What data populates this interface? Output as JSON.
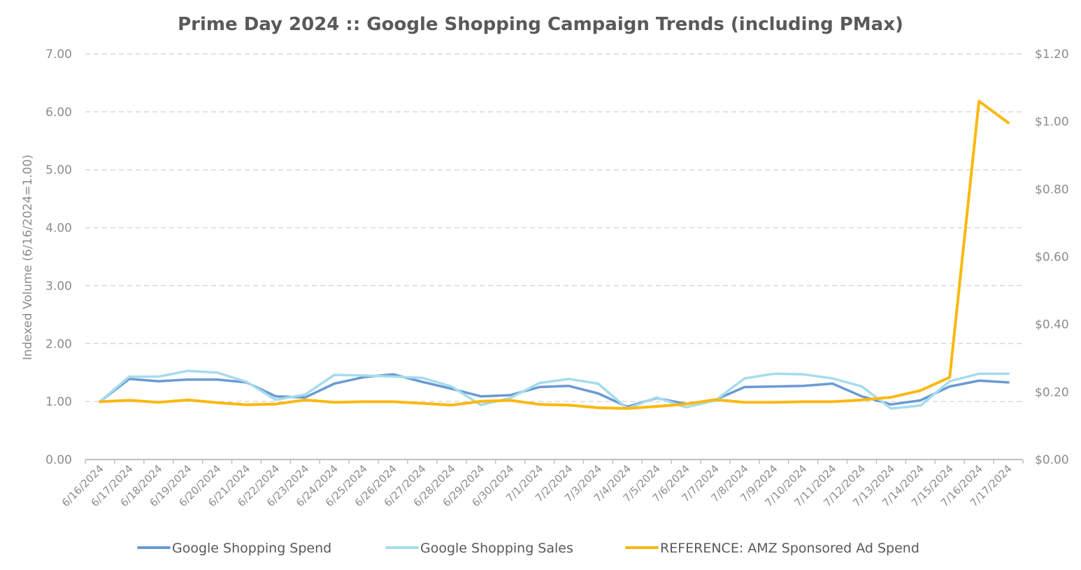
{
  "chart_data": {
    "type": "line",
    "title": "Prime Day 2024 :: Google Shopping Campaign Trends (including PMax)",
    "ylabel": "Indexed Volume (6/16/2024=1.00)",
    "y2label": "",
    "xlabel": "",
    "ylim": [
      0,
      7
    ],
    "y2lim": [
      0,
      1.2
    ],
    "yticks": [
      "0.00",
      "1.00",
      "2.00",
      "3.00",
      "4.00",
      "5.00",
      "6.00",
      "7.00"
    ],
    "y2ticks": [
      "$0.00",
      "$0.20",
      "$0.40",
      "$0.60",
      "$0.80",
      "$1.00",
      "$1.20"
    ],
    "grid": "horizontal-dashed",
    "legend_position": "bottom",
    "categories": [
      "6/16/2024",
      "6/17/2024",
      "6/18/2024",
      "6/19/2024",
      "6/20/2024",
      "6/21/2024",
      "6/22/2024",
      "6/23/2024",
      "6/24/2024",
      "6/25/2024",
      "6/26/2024",
      "6/27/2024",
      "6/28/2024",
      "6/29/2024",
      "6/30/2024",
      "7/1/2024",
      "7/2/2024",
      "7/3/2024",
      "7/4/2024",
      "7/5/2024",
      "7/6/2024",
      "7/7/2024",
      "7/8/2024",
      "7/9/2024",
      "7/10/2024",
      "7/11/2024",
      "7/12/2024",
      "7/13/2024",
      "7/14/2024",
      "7/15/2024",
      "7/16/2024",
      "7/17/2024"
    ],
    "series": [
      {
        "name": "Google Shopping Spend",
        "axis": "left",
        "color": "#6a9ad4",
        "values": [
          1.0,
          1.39,
          1.35,
          1.38,
          1.38,
          1.33,
          1.09,
          1.07,
          1.31,
          1.42,
          1.47,
          1.34,
          1.22,
          1.09,
          1.11,
          1.25,
          1.27,
          1.14,
          0.91,
          1.06,
          0.96,
          1.03,
          1.25,
          1.26,
          1.27,
          1.31,
          1.09,
          0.95,
          1.02,
          1.26,
          1.36,
          1.33
        ]
      },
      {
        "name": "Google Shopping Sales",
        "axis": "left",
        "color": "#a6dcec",
        "values": [
          1.0,
          1.43,
          1.43,
          1.53,
          1.5,
          1.34,
          1.03,
          1.12,
          1.46,
          1.45,
          1.43,
          1.41,
          1.26,
          0.94,
          1.06,
          1.32,
          1.39,
          1.31,
          0.88,
          1.07,
          0.9,
          1.02,
          1.4,
          1.48,
          1.47,
          1.4,
          1.26,
          0.88,
          0.93,
          1.35,
          1.48,
          1.48
        ]
      },
      {
        "name": "REFERENCE: AMZ Sponsored Ad Spend",
        "axis": "right",
        "color": "#fbb810",
        "values": [
          0.171,
          0.175,
          0.169,
          0.176,
          0.168,
          0.162,
          0.164,
          0.176,
          0.169,
          0.171,
          0.171,
          0.166,
          0.161,
          0.172,
          0.175,
          0.163,
          0.161,
          0.153,
          0.151,
          0.157,
          0.164,
          0.177,
          0.169,
          0.169,
          0.171,
          0.171,
          0.176,
          0.184,
          0.204,
          0.243,
          1.06,
          0.996
        ]
      }
    ]
  },
  "colors": {
    "text": "#595959",
    "title": "#595959",
    "grid": "#d9d9d9",
    "axis": "#bfbfbf"
  }
}
